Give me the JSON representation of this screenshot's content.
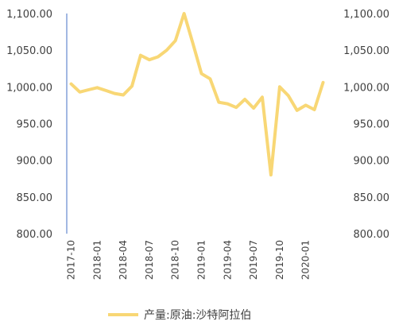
{
  "chart_data": {
    "type": "line",
    "title": "",
    "xlabel": "",
    "ylabel": "",
    "ylim": [
      800,
      1100
    ],
    "y_ticks": [
      "800.00",
      "850.00",
      "900.00",
      "950.00",
      "1,000.00",
      "1,050.00",
      "1,100.00"
    ],
    "y_tick_values": [
      800,
      850,
      900,
      950,
      1000,
      1050,
      1100
    ],
    "right_axis_mirrors_left": true,
    "x_tick_labels": [
      "2017-10",
      "2018-01",
      "2018-04",
      "2018-07",
      "2018-10",
      "2019-01",
      "2019-04",
      "2019-07",
      "2019-10",
      "2020-01"
    ],
    "x": [
      "2017-10",
      "2017-11",
      "2017-12",
      "2018-01",
      "2018-02",
      "2018-03",
      "2018-04",
      "2018-05",
      "2018-06",
      "2018-07",
      "2018-08",
      "2018-09",
      "2018-10",
      "2018-11",
      "2018-12",
      "2019-01",
      "2019-02",
      "2019-03",
      "2019-04",
      "2019-05",
      "2019-06",
      "2019-07",
      "2019-08",
      "2019-09",
      "2019-10",
      "2019-11",
      "2019-12",
      "2020-01",
      "2020-02",
      "2020-03"
    ],
    "series": [
      {
        "name": "产量:原油:沙特阿拉伯",
        "color": "#F8D775",
        "values": [
          1004,
          993,
          996,
          999,
          995,
          991,
          989,
          1001,
          1043,
          1037,
          1041,
          1050,
          1063,
          1100,
          1060,
          1018,
          1011,
          979,
          977,
          972,
          983,
          971,
          986,
          880,
          1000,
          988,
          968,
          975,
          969,
          1006
        ]
      }
    ],
    "grid": false,
    "legend_position": "bottom",
    "axis_color": "#4472C4"
  }
}
